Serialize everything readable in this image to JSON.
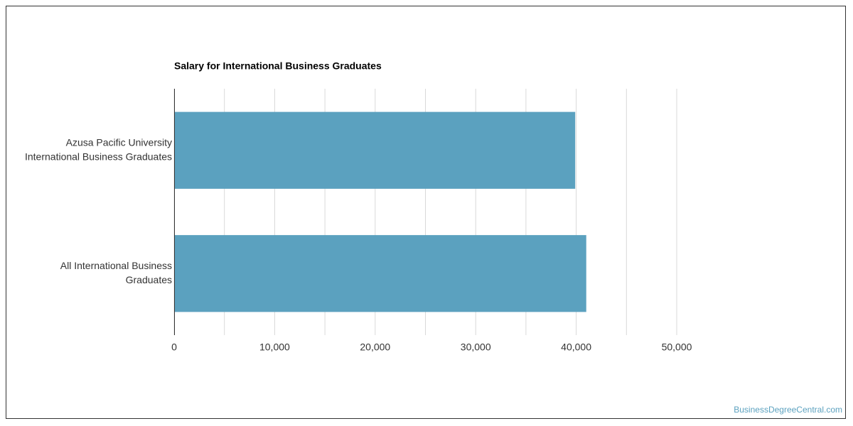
{
  "chart_data": {
    "type": "hbar",
    "title": "Salary for International Business Graduates",
    "categories": [
      [
        "Azusa Pacific University",
        "International Business Graduates"
      ],
      [
        "All International Business",
        "Graduates"
      ]
    ],
    "values": [
      39900,
      41000
    ],
    "color": "#5ba1bf",
    "xlim": [
      0,
      50000
    ],
    "xticks": [
      0,
      {
        "value": 10000,
        "label": "10,000"
      },
      {
        "value": 20000,
        "label": "20,000"
      },
      {
        "value": 30000,
        "label": "30,000"
      },
      {
        "value": 40000,
        "label": "40,000"
      },
      {
        "value": 50000,
        "label": "50,000"
      }
    ],
    "minor_xticks": [
      5000,
      15000,
      25000,
      35000,
      45000
    ],
    "grid": true,
    "source": "BusinessDegreeCentral.com"
  }
}
